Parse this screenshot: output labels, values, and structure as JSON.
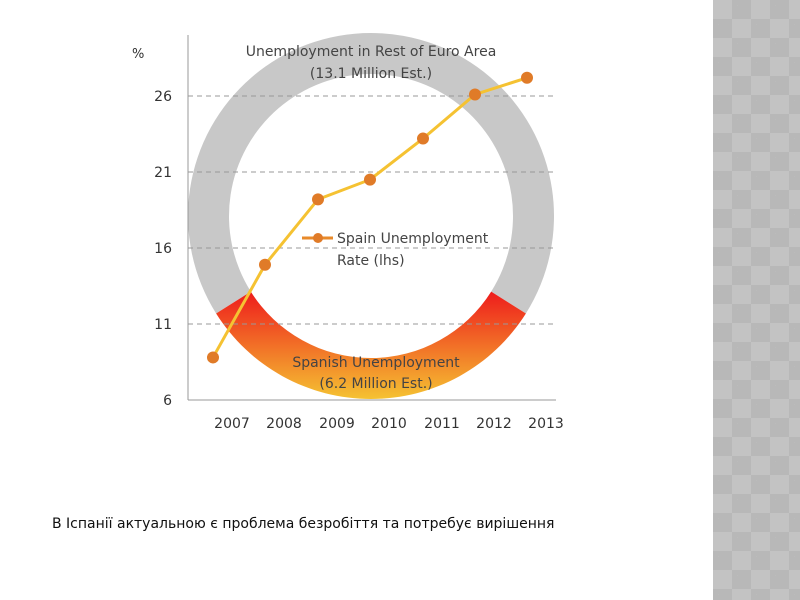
{
  "chart_data": {
    "type": "line",
    "title": "",
    "ylabel": "%",
    "xlabel": "",
    "categories": [
      "2007",
      "2008",
      "2009",
      "2010",
      "2011",
      "2012",
      "2013"
    ],
    "series": [
      {
        "name": "Spain Unemployment Rate (lhs)",
        "values": [
          8.8,
          14.9,
          19.2,
          20.5,
          23.2,
          26.1,
          27.2
        ],
        "color": "#f5c232",
        "marker_color": "#e07b28"
      }
    ],
    "yticks": [
      6,
      11,
      16,
      21,
      26
    ],
    "ylim": [
      6,
      28.3
    ],
    "grid": "dashed horizontal",
    "legend": {
      "line1": "Spain Unemployment",
      "line2": "Rate (lhs)",
      "placement": "center"
    },
    "donut": {
      "segments": [
        {
          "label_line1": "Unemployment in Rest of Euro Area",
          "label_line2": "(13.1 Million Est.)",
          "value": 13.1,
          "color": "#c8c8c8"
        },
        {
          "label_line1": "Spanish Unemployment",
          "label_line2": "(6.2 Million Est.)",
          "value": 6.2,
          "color_top": "#ee1c1c",
          "color_bottom": "#f5c232"
        }
      ]
    }
  },
  "caption": "В Іспанії актуальною є проблема безробіття та потребує вирішення"
}
